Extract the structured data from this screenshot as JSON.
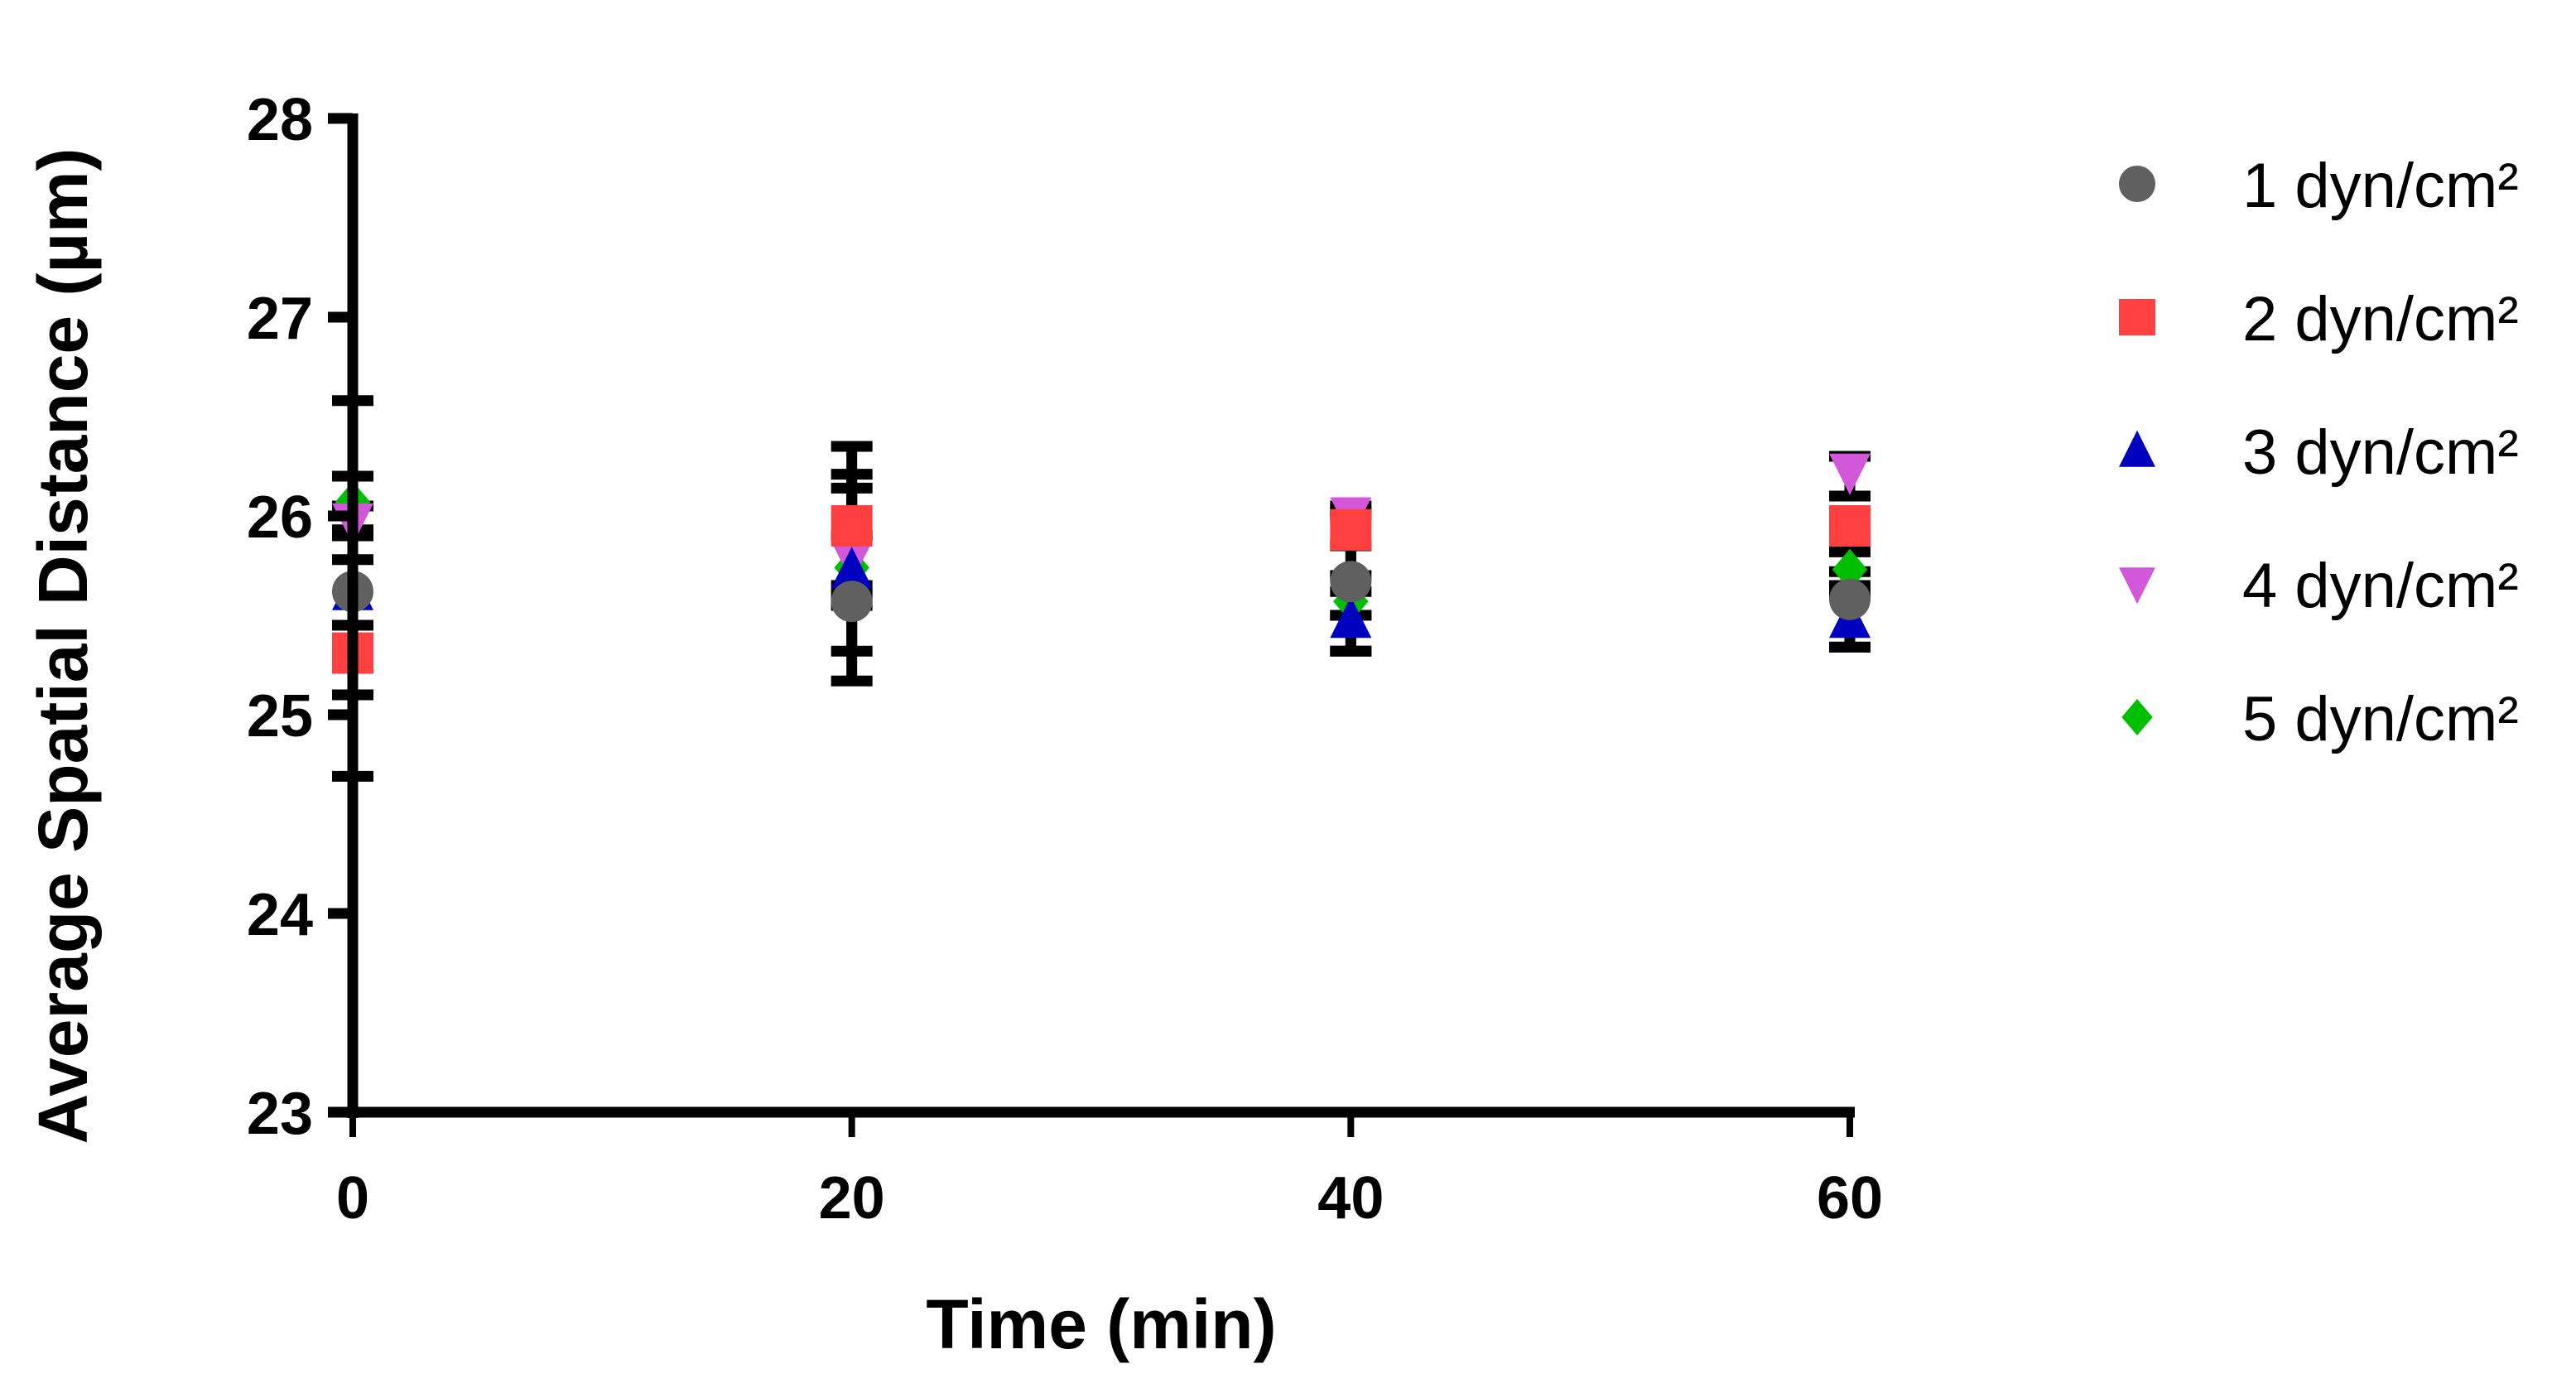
{
  "chart_data": {
    "type": "scatter",
    "title": "",
    "xlabel": "Time (min)",
    "ylabel": "Average Spatial Distance (µm)",
    "x": [
      0,
      20,
      40,
      60
    ],
    "xticks": [
      "0",
      "20",
      "40",
      "60"
    ],
    "yticks": [
      "23",
      "24",
      "25",
      "26",
      "27",
      "28"
    ],
    "xlim": [
      0,
      60
    ],
    "ylim": [
      23,
      28
    ],
    "grid": false,
    "legend_position": "right",
    "series": [
      {
        "name": "1 dyn/cm²",
        "marker": "circle",
        "color": "#606060",
        "values": [
          25.62,
          25.57,
          25.67,
          25.58
        ],
        "err_low": [
          24.69,
          25.17,
          25.32,
          25.34
        ],
        "err_high": [
          26.58,
          26.35,
          26.0,
          25.82
        ]
      },
      {
        "name": "2 dyn/cm²",
        "marker": "square",
        "color": "#ff4040",
        "values": [
          25.31,
          25.95,
          25.93,
          25.95
        ],
        "err_low": [
          25.1,
          25.32,
          25.5,
          25.72
        ],
        "err_high": [
          25.36,
          26.21,
          26.02,
          26.0
        ]
      },
      {
        "name": "3 dyn/cm²",
        "marker": "triangle-up",
        "color": "#0000bf",
        "values": [
          25.62,
          25.73,
          25.48,
          25.48
        ],
        "err_low": [
          25.45,
          25.55,
          25.32,
          25.34
        ],
        "err_high": [
          25.78,
          25.9,
          25.62,
          25.6
        ]
      },
      {
        "name": "4 dyn/cm²",
        "marker": "triangle-down",
        "color": "#d257d9",
        "values": [
          25.97,
          25.78,
          26.0,
          26.22
        ],
        "err_low": [
          25.9,
          25.65,
          25.85,
          26.1
        ],
        "err_high": [
          26.05,
          25.9,
          26.05,
          26.3
        ]
      },
      {
        "name": "5 dyn/cm²",
        "marker": "diamond",
        "color": "#00bf00",
        "values": [
          26.07,
          25.74,
          25.57,
          25.73
        ],
        "err_low": [
          25.93,
          25.6,
          25.5,
          25.65
        ],
        "err_high": [
          26.2,
          26.14,
          25.7,
          25.82
        ]
      }
    ]
  },
  "legend": {
    "items": [
      {
        "label": "1 dyn/cm²",
        "marker": "circle",
        "color": "#606060"
      },
      {
        "label": "2 dyn/cm²",
        "marker": "square",
        "color": "#ff4040"
      },
      {
        "label": "3 dyn/cm²",
        "marker": "triangle-up",
        "color": "#0000bf"
      },
      {
        "label": "4 dyn/cm²",
        "marker": "triangle-down",
        "color": "#d257d9"
      },
      {
        "label": "5 dyn/cm²",
        "marker": "diamond",
        "color": "#00bf00"
      }
    ]
  },
  "axes": {
    "x_title": "Time (min)",
    "y_title": "Average Spatial Distance (µm)"
  }
}
